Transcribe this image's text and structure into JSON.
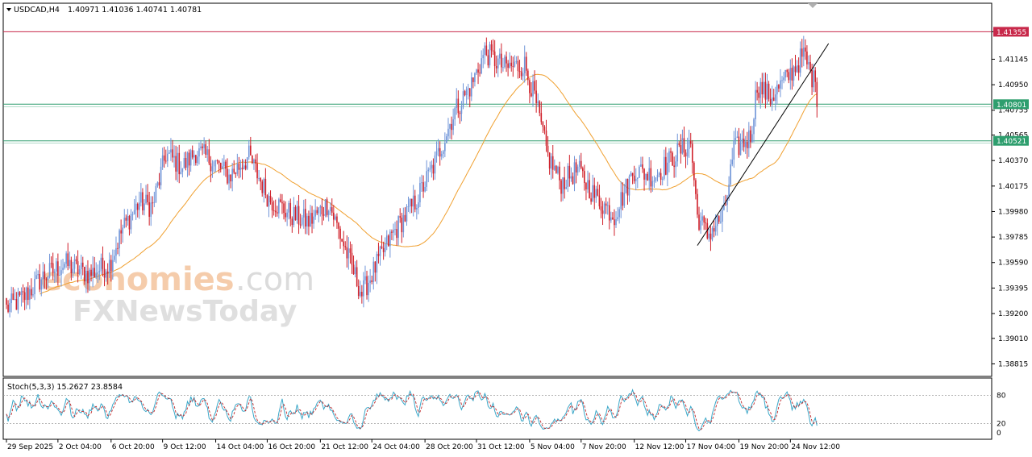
{
  "header": {
    "symbol": "USDCAD,H4",
    "ohlc": "1.40971 1.41036 1.40741 1.40781"
  },
  "watermark": {
    "part1": "economies",
    "part2": ".com",
    "line2": "FXNewsToday"
  },
  "colors": {
    "bull": "#6f94d8",
    "bear": "#d0202a",
    "ma": "#f0a030",
    "resistance": "#c8284a",
    "support": "#2e9e6e",
    "stoch_main": "#3aa7c8",
    "stoch_signal": "#c0282a",
    "trendline": "#000000"
  },
  "chart_data": [
    {
      "type": "candlestick",
      "title": "USDCAD,H4",
      "ohlc_label": "1.40971 1.41036 1.40741 1.40781",
      "ylim": [
        1.3875,
        1.4145
      ],
      "y_ticks": [
        "1.41355",
        "1.41145",
        "1.40950",
        "1.40755",
        "1.40565",
        "1.40370",
        "1.40175",
        "1.39980",
        "1.39785",
        "1.39590",
        "1.39395",
        "1.39200",
        "1.39010",
        "1.38815"
      ],
      "x_labels": [
        "29 Sep 2025",
        "2 Oct 04:00",
        "6 Oct 20:00",
        "9 Oct 12:00",
        "14 Oct 04:00",
        "16 Oct 20:00",
        "21 Oct 12:00",
        "24 Oct 04:00",
        "28 Oct 20:00",
        "31 Oct 12:00",
        "5 Nov 04:00",
        "7 Nov 20:00",
        "12 Nov 12:00",
        "17 Nov 04:00",
        "19 Nov 20:00",
        "24 Nov 12:00"
      ],
      "price_levels": [
        {
          "label": "1.41355",
          "value": 1.41355,
          "kind": "resistance"
        },
        {
          "label": "1.40801",
          "value": 1.40801,
          "kind": "support"
        },
        {
          "label": "1.40521",
          "value": 1.40521,
          "kind": "support"
        }
      ],
      "close_anchors": [
        [
          0,
          1.3924
        ],
        [
          10,
          1.3932
        ],
        [
          22,
          1.3948
        ],
        [
          35,
          1.3958
        ],
        [
          50,
          1.395
        ],
        [
          62,
          1.3958
        ],
        [
          70,
          1.3985
        ],
        [
          80,
          1.4005
        ],
        [
          88,
          1.4002
        ],
        [
          96,
          1.4042
        ],
        [
          106,
          1.4032
        ],
        [
          114,
          1.4044
        ],
        [
          124,
          1.4037
        ],
        [
          134,
          1.4025
        ],
        [
          146,
          1.404
        ],
        [
          158,
          1.4008
        ],
        [
          172,
          1.3995
        ],
        [
          182,
          1.399
        ],
        [
          194,
          1.4005
        ],
        [
          206,
          1.3962
        ],
        [
          214,
          1.3935
        ],
        [
          222,
          1.3955
        ],
        [
          232,
          1.398
        ],
        [
          246,
          1.4005
        ],
        [
          258,
          1.4035
        ],
        [
          270,
          1.4075
        ],
        [
          280,
          1.4095
        ],
        [
          288,
          1.412
        ],
        [
          300,
          1.4108
        ],
        [
          312,
          1.411
        ],
        [
          318,
          1.4085
        ],
        [
          326,
          1.404
        ],
        [
          334,
          1.402
        ],
        [
          344,
          1.403
        ],
        [
          354,
          1.401
        ],
        [
          366,
          1.3995
        ],
        [
          378,
          1.403
        ],
        [
          390,
          1.4025
        ],
        [
          398,
          1.4035
        ],
        [
          406,
          1.4045
        ],
        [
          412,
          1.405
        ],
        [
          416,
          1.3995
        ],
        [
          422,
          1.398
        ],
        [
          432,
          1.3995
        ],
        [
          438,
          1.4045
        ],
        [
          448,
          1.4055
        ],
        [
          452,
          1.4095
        ],
        [
          460,
          1.4085
        ],
        [
          470,
          1.41
        ],
        [
          480,
          1.4118
        ],
        [
          486,
          1.4098
        ],
        [
          488,
          1.4078
        ]
      ],
      "trend_line": [
        [
          416,
          1.3972
        ],
        [
          495,
          1.41265
        ]
      ],
      "ma_period": 50
    },
    {
      "type": "line",
      "title": "Stoch(5,3,3) 15.2627 23.8584",
      "ylim": [
        0,
        100
      ],
      "y_ticks": [
        "80",
        "20",
        "0"
      ],
      "series": [
        {
          "name": "main",
          "last": 15.2627
        },
        {
          "name": "signal",
          "last": 23.8584
        }
      ]
    }
  ]
}
